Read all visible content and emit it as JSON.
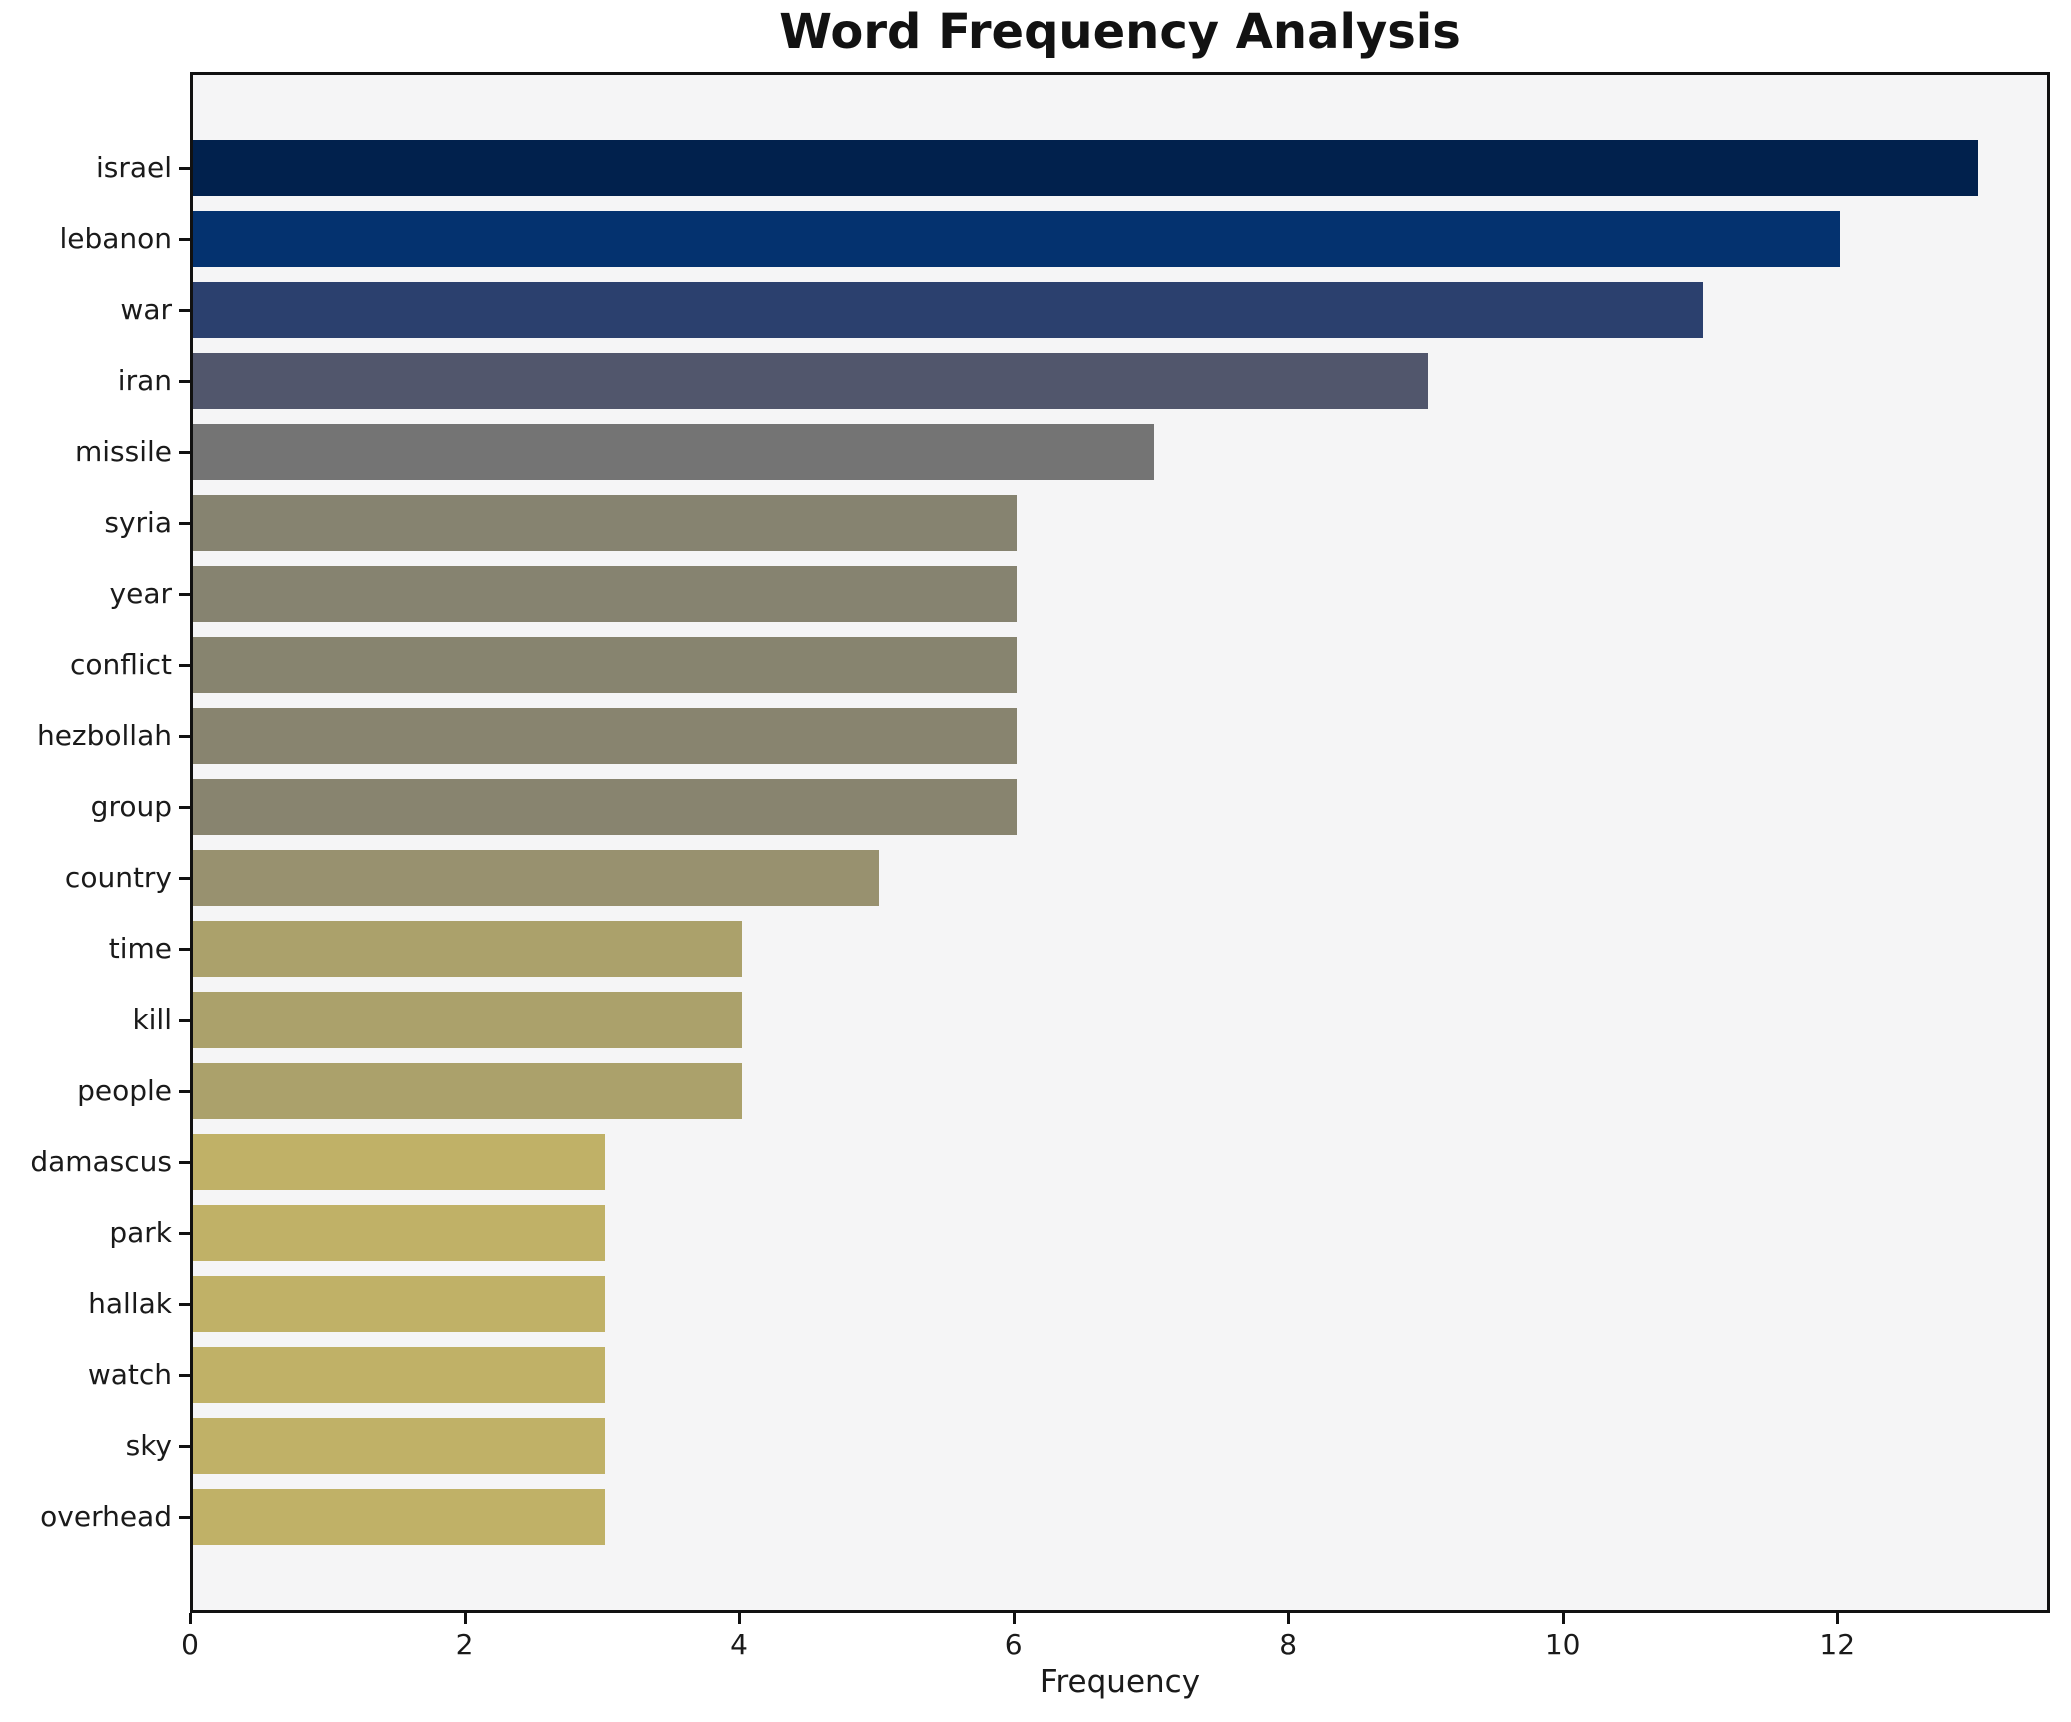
{
  "title": "Word Frequency Analysis",
  "chart_data": {
    "type": "bar",
    "orientation": "horizontal",
    "title": "Word Frequency Analysis",
    "xlabel": "Frequency",
    "ylabel": "",
    "categories": [
      "israel",
      "lebanon",
      "war",
      "iran",
      "missile",
      "syria",
      "year",
      "conflict",
      "hezbollah",
      "group",
      "country",
      "time",
      "kill",
      "people",
      "damascus",
      "park",
      "hallak",
      "watch",
      "sky",
      "overhead"
    ],
    "values": [
      13,
      12,
      11,
      9,
      7,
      6,
      6,
      6,
      6,
      6,
      5,
      4,
      4,
      4,
      3,
      3,
      3,
      3,
      3,
      3
    ],
    "bar_colors": [
      "#01214d",
      "#04326f",
      "#2b406e",
      "#51566c",
      "#747474",
      "#868370",
      "#868370",
      "#87846f",
      "#88846f",
      "#88846f",
      "#98916f",
      "#aba16b",
      "#aba16b",
      "#aba16b",
      "#c0b167",
      "#c0b167",
      "#c0b167",
      "#c0b167",
      "#c0b167",
      "#c0b167"
    ],
    "xticks": [
      0,
      2,
      4,
      6,
      8,
      10,
      12
    ],
    "xtick_labels": [
      "0",
      "2",
      "4",
      "6",
      "8",
      "10",
      "12"
    ],
    "xlim": [
      0,
      13.55
    ],
    "grid": false,
    "legend": null,
    "plot_background": "#f5f5f6",
    "figure_background": "#ffffff",
    "spine_color": "#111111",
    "title_color": "#121212"
  }
}
